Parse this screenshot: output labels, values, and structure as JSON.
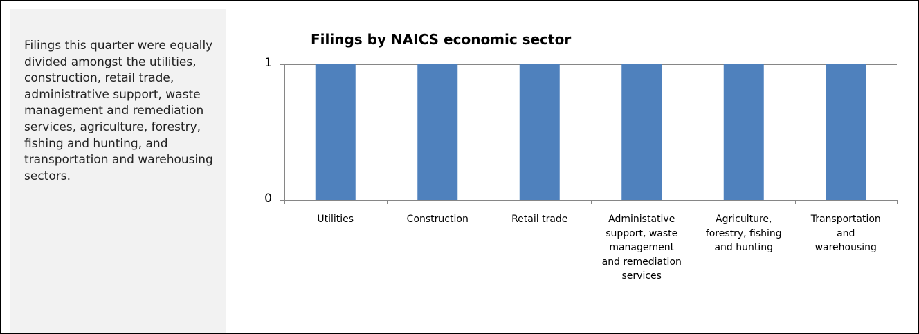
{
  "sidebar": {
    "text": "Filings this quarter were equally divided amongst the utilities, construction, retail trade, administrative support, waste management and remediation services, agriculture, forestry, fishing and hunting, and transportation and warehousing sectors."
  },
  "chart_data": {
    "type": "bar",
    "title": "Filings by NAICS economic sector",
    "xlabel": "",
    "ylabel": "",
    "categories": [
      "Utilities",
      "Construction",
      "Retail trade",
      "Administative support, waste management and remediation services",
      "Agriculture, forestry, fishing and hunting",
      "Transportation and warehousing"
    ],
    "values": [
      1,
      1,
      1,
      1,
      1,
      1
    ],
    "ylim": [
      0,
      1
    ],
    "yticks": [
      "0",
      "1"
    ],
    "grid": true,
    "legend": "none",
    "colors": {
      "bar": "#4f81bd",
      "grid": "#868686",
      "axis": "#868686"
    }
  }
}
